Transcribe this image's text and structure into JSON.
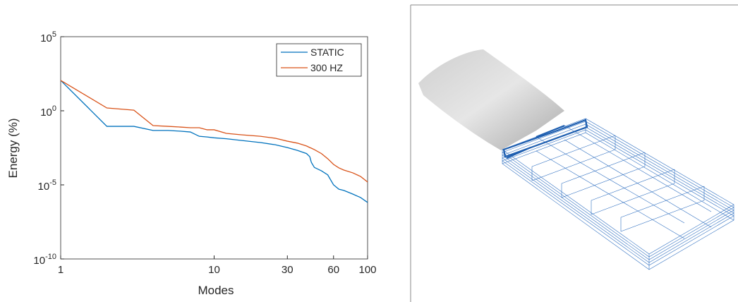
{
  "chart_data": {
    "type": "line",
    "xlabel": "Modes",
    "ylabel": "Energy (%)",
    "xscale": "log",
    "yscale": "log",
    "x": [
      1,
      2,
      3,
      4,
      5,
      6,
      7,
      8,
      9,
      10,
      12,
      15,
      20,
      25,
      30,
      35,
      40,
      42,
      43,
      45,
      50,
      55,
      60,
      65,
      70,
      80,
      90,
      100
    ],
    "series": [
      {
        "name": "STATIC",
        "color": "#0072bd",
        "values": [
          112,
          0.089,
          0.089,
          0.047,
          0.047,
          0.042,
          0.037,
          0.019,
          0.017,
          0.015,
          0.013,
          0.01,
          0.0072,
          0.0051,
          0.0033,
          0.0021,
          0.0013,
          0.0008,
          0.00033,
          0.00015,
          8.9e-05,
          4.7e-05,
          1e-05,
          5.1e-06,
          4.2e-06,
          2.4e-06,
          1.4e-06,
          6.5e-07
        ]
      },
      {
        "name": "300 HZ",
        "color": "#d95319",
        "values": [
          112,
          1.55,
          1.1,
          0.1,
          0.089,
          0.08,
          0.072,
          0.072,
          0.052,
          0.052,
          0.03,
          0.024,
          0.019,
          0.014,
          0.0089,
          0.0065,
          0.0042,
          0.0033,
          0.003,
          0.0024,
          0.0013,
          0.00058,
          0.00024,
          0.00014,
          0.0001,
          6.5e-05,
          3.7e-05,
          1.55e-05
        ]
      }
    ],
    "xlim": [
      1,
      100
    ],
    "xticks": [
      1,
      10,
      30,
      60,
      100
    ],
    "ylim": [
      1e-10,
      100000
    ],
    "yticks": [
      {
        "value": 1e-10,
        "label": "10^-10"
      },
      {
        "value": 1e-05,
        "label": "10^-5"
      },
      {
        "value": 1,
        "label": "10^0"
      },
      {
        "value": 100000,
        "label": "10^5"
      }
    ],
    "legend": "upper right"
  }
}
